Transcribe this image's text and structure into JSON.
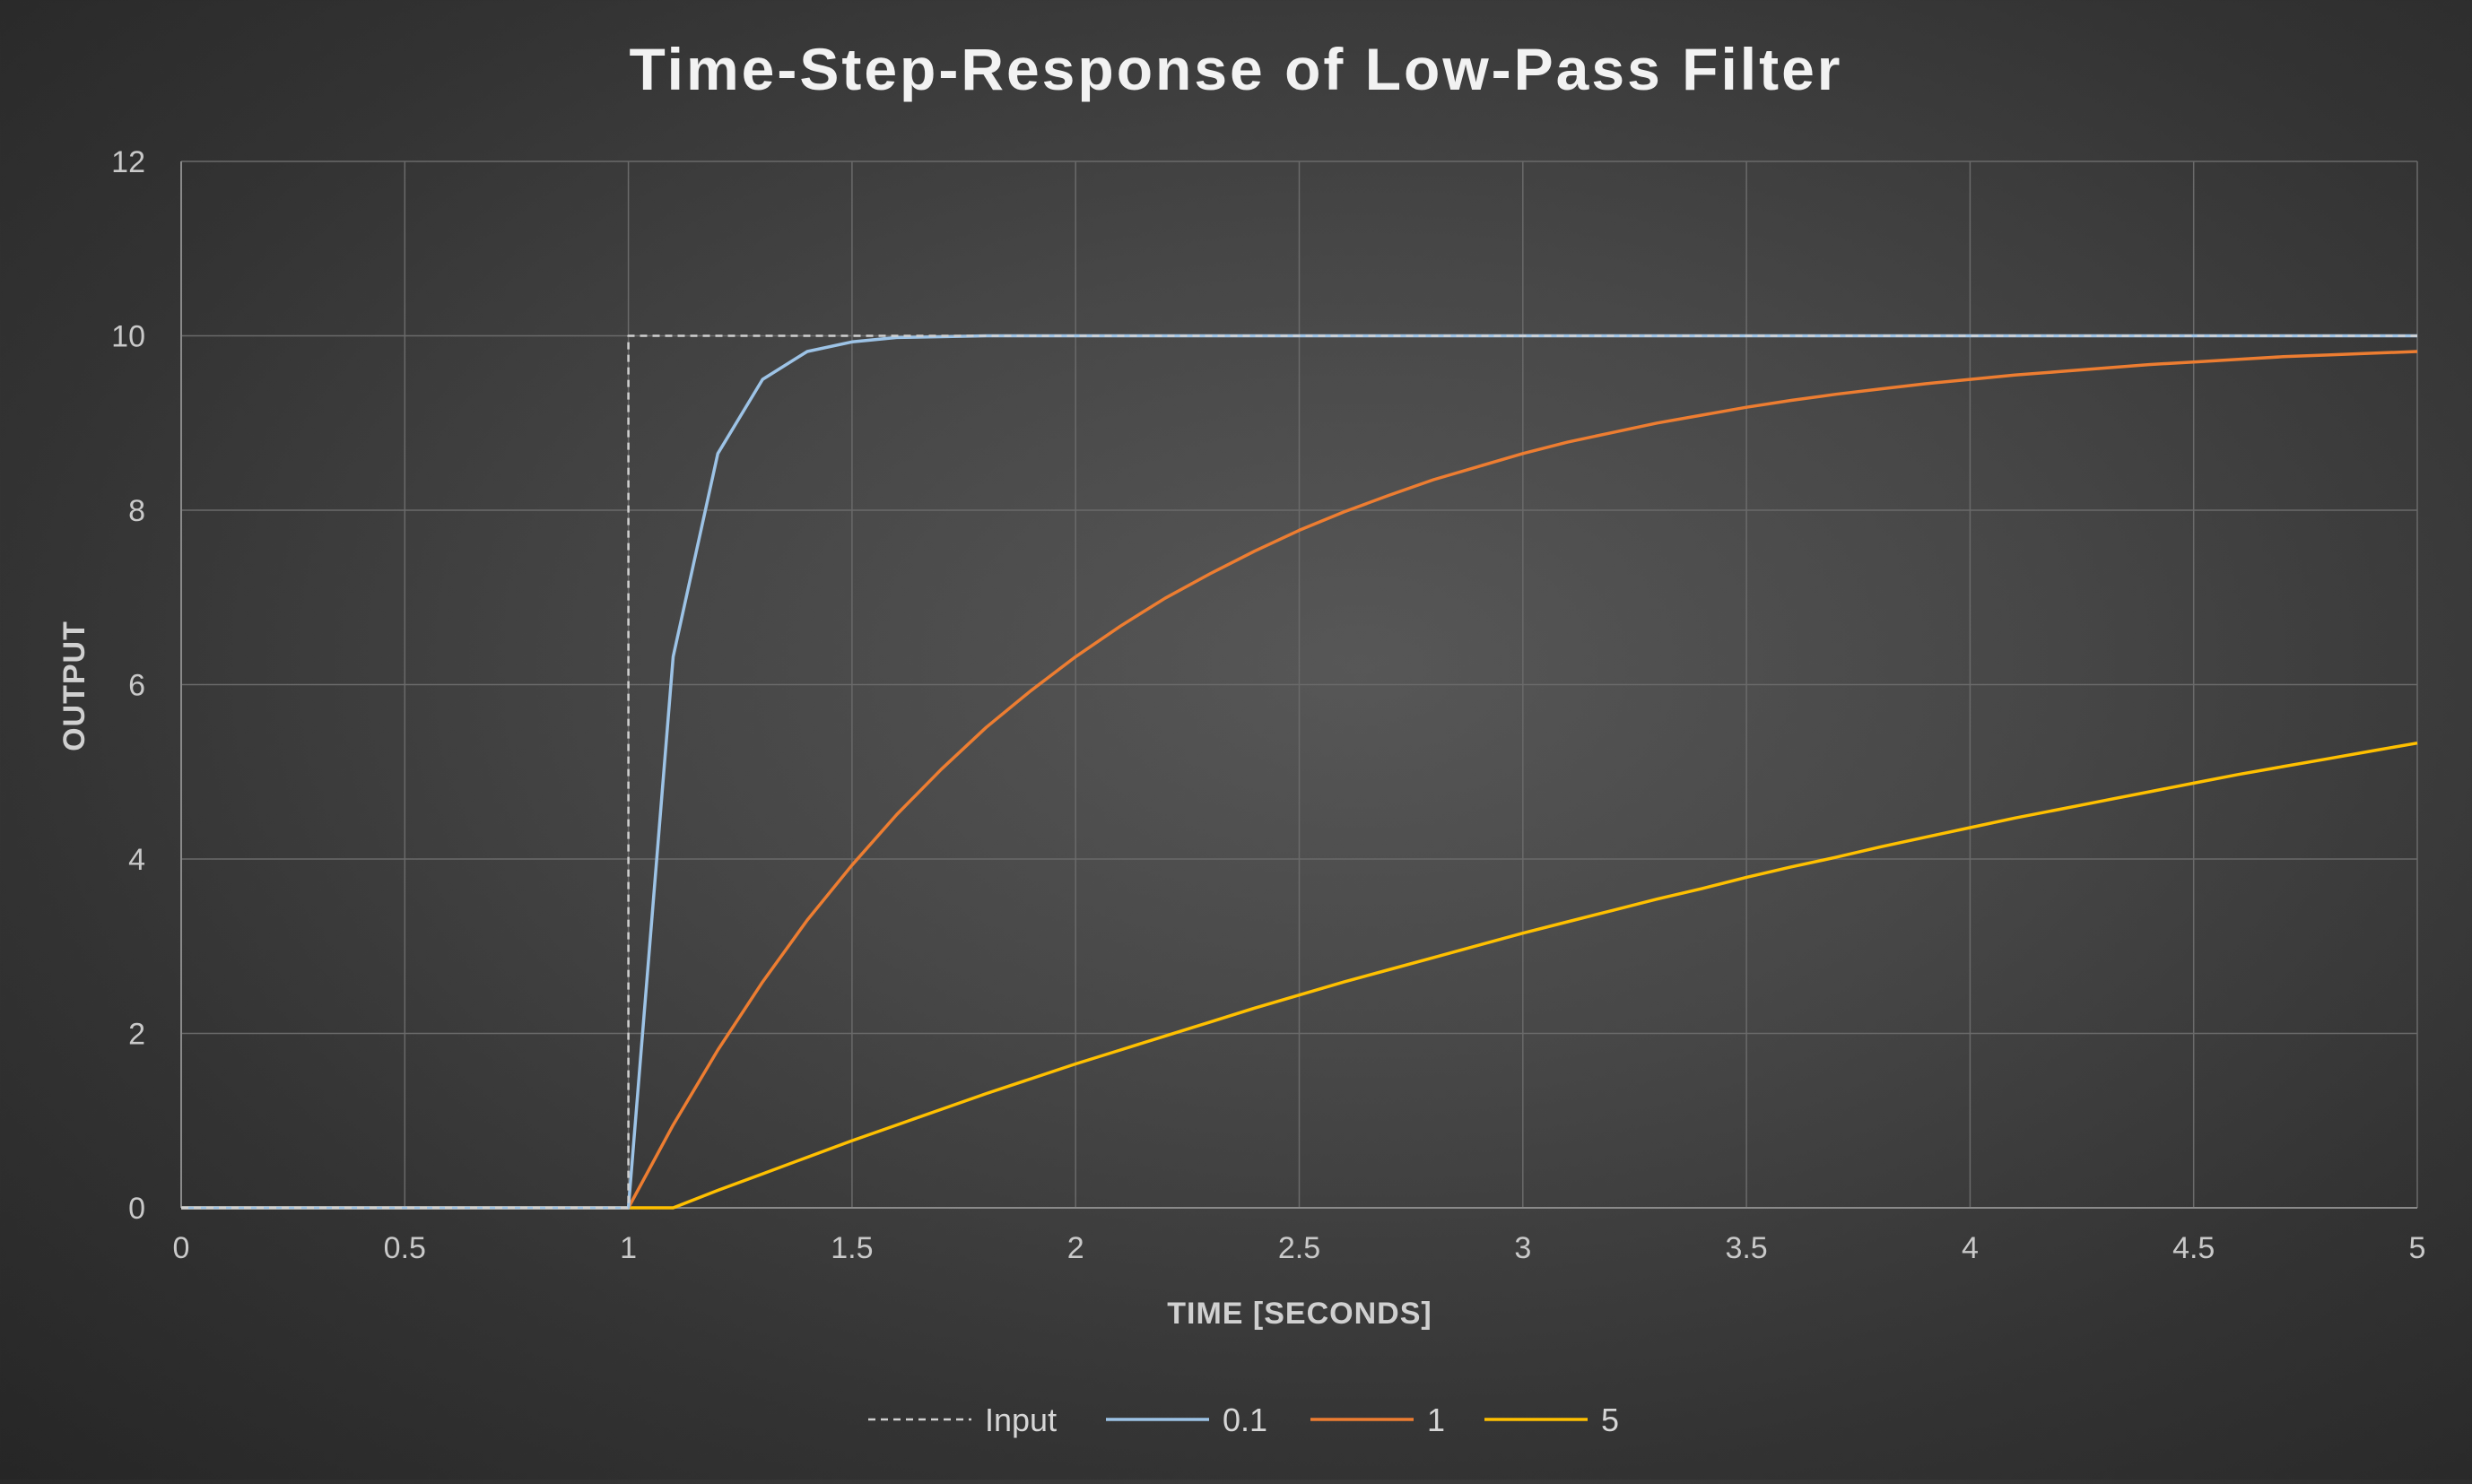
{
  "chart_data": {
    "type": "line",
    "title": "Time-Step-Response of Low-Pass Filter",
    "xlabel": "TIME [SECONDS]",
    "ylabel": "OUTPUT",
    "xlim": [
      0,
      5
    ],
    "ylim": [
      0,
      12
    ],
    "x_ticks": [
      0,
      0.5,
      1,
      1.5,
      2,
      2.5,
      3,
      3.5,
      4,
      4.5,
      5
    ],
    "x_tick_labels": [
      "0",
      "0.5",
      "1",
      "1.5",
      "2",
      "2.5",
      "3",
      "3.5",
      "4",
      "4.5",
      "5"
    ],
    "y_ticks": [
      0,
      2,
      4,
      6,
      8,
      10,
      12
    ],
    "y_tick_labels": [
      "0",
      "2",
      "4",
      "6",
      "8",
      "10",
      "12"
    ],
    "grid": true,
    "legend_position": "bottom",
    "x": [
      0,
      0.1,
      0.2,
      0.3,
      0.4,
      0.5,
      0.6,
      0.7,
      0.8,
      0.9,
      1.0,
      1.1,
      1.2,
      1.3,
      1.4,
      1.5,
      1.6,
      1.7,
      1.8,
      1.9,
      2.0,
      2.1,
      2.2,
      2.3,
      2.4,
      2.5,
      2.6,
      2.7,
      2.8,
      2.9,
      3.0,
      3.1,
      3.2,
      3.3,
      3.4,
      3.5,
      3.6,
      3.7,
      3.8,
      3.9,
      4.0,
      4.1,
      4.2,
      4.3,
      4.4,
      4.5,
      4.6,
      4.7,
      4.8,
      4.9,
      5.0
    ],
    "series": [
      {
        "name": "Input",
        "color": "#d0d0d0",
        "dashed": true,
        "values": [
          0,
          0,
          0,
          0,
          0,
          0,
          0,
          0,
          0,
          0,
          10,
          10,
          10,
          10,
          10,
          10,
          10,
          10,
          10,
          10,
          10,
          10,
          10,
          10,
          10,
          10,
          10,
          10,
          10,
          10,
          10,
          10,
          10,
          10,
          10,
          10,
          10,
          10,
          10,
          10,
          10,
          10,
          10,
          10,
          10,
          10,
          10,
          10,
          10,
          10,
          10
        ],
        "step_at": 1.0
      },
      {
        "name": "0.1",
        "color": "#9dc3e6",
        "dashed": false,
        "values": [
          0,
          0,
          0,
          0,
          0,
          0,
          0,
          0,
          0,
          0,
          0,
          6.32,
          8.65,
          9.5,
          9.82,
          9.93,
          9.98,
          9.99,
          10,
          10,
          10,
          10,
          10,
          10,
          10,
          10,
          10,
          10,
          10,
          10,
          10,
          10,
          10,
          10,
          10,
          10,
          10,
          10,
          10,
          10,
          10,
          10,
          10,
          10,
          10,
          10,
          10,
          10,
          10,
          10,
          10
        ]
      },
      {
        "name": "1",
        "color": "#ed7d31",
        "dashed": false,
        "values": [
          0,
          0,
          0,
          0,
          0,
          0,
          0,
          0,
          0,
          0,
          0,
          0.95,
          1.81,
          2.59,
          3.3,
          3.93,
          4.51,
          5.03,
          5.51,
          5.93,
          6.32,
          6.67,
          6.99,
          7.27,
          7.53,
          7.77,
          7.98,
          8.17,
          8.35,
          8.5,
          8.65,
          8.78,
          8.89,
          9.0,
          9.09,
          9.18,
          9.26,
          9.33,
          9.39,
          9.45,
          9.5,
          9.55,
          9.59,
          9.63,
          9.67,
          9.7,
          9.73,
          9.76,
          9.78,
          9.8,
          9.82
        ]
      },
      {
        "name": "5",
        "color": "#ffc000",
        "dashed": false,
        "values": [
          0,
          0,
          0,
          0,
          0,
          0,
          0,
          0,
          0,
          0,
          0,
          0,
          0.2,
          0.39,
          0.58,
          0.77,
          0.95,
          1.13,
          1.31,
          1.48,
          1.65,
          1.81,
          1.97,
          2.13,
          2.29,
          2.44,
          2.59,
          2.73,
          2.87,
          3.01,
          3.15,
          3.28,
          3.41,
          3.54,
          3.66,
          3.79,
          3.91,
          4.02,
          4.14,
          4.25,
          4.36,
          4.47,
          4.57,
          4.67,
          4.77,
          4.87,
          4.97,
          5.06,
          5.15,
          5.24,
          5.33
        ]
      }
    ]
  },
  "colors": {
    "grid": "#6a6a6a",
    "axis": "#8a8a8a"
  }
}
